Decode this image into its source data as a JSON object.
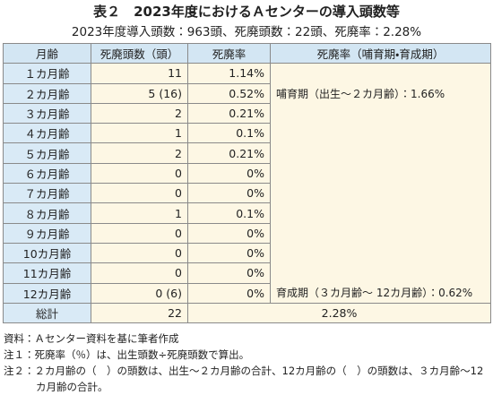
{
  "title": "表２　2023年度におけるＡセンターの導入頭数等",
  "subtitle": "2023年度導入頭数：963頭、死廃頭数：22頭、死廃率：2.28%",
  "table": {
    "header": [
      "月齢",
      "死廃頭数（頭）",
      "死廃率",
      "死廃率（哺育期・育成期）"
    ],
    "rows": [
      [
        "１カ月齢",
        "11",
        "1.14%"
      ],
      [
        "２カ月齢",
        "5 (16)",
        "0.52%"
      ],
      [
        "３カ月齢",
        "2",
        "0.21%"
      ],
      [
        "４カ月齢",
        "1",
        "0.1%"
      ],
      [
        "５カ月齢",
        "2",
        "0.21%"
      ],
      [
        "６カ月齢",
        "0",
        "0%"
      ],
      [
        "７カ月齢",
        "0",
        "0%"
      ],
      [
        "８カ月齢",
        "1",
        "0.1%"
      ],
      [
        "９カ月齢",
        "0",
        "0%"
      ],
      [
        "10カ月齢",
        "0",
        "0%"
      ],
      [
        "11カ月齢",
        "0",
        "0%"
      ],
      [
        "12カ月齢",
        "0 (6)",
        "0%"
      ]
    ],
    "period_rates": [
      "哺育期（出生～２カ月齢）：1.66%",
      "育成期（３カ月齢～ 12カ月齢）：0.62%"
    ],
    "total": [
      "総計",
      "22",
      "2.28%"
    ]
  },
  "notes": [
    "資料：Ａセンター資料を基に筆者作成",
    "注１：死廃率（％）は、出生頭数÷死廃頭数で算出。",
    "注２：２カ月齢の（　）の頭数は、出生～２カ月齢の合計、12カ月齢の（　）の頭数は、３カ月齢～12カ月齢の合計。"
  ]
}
